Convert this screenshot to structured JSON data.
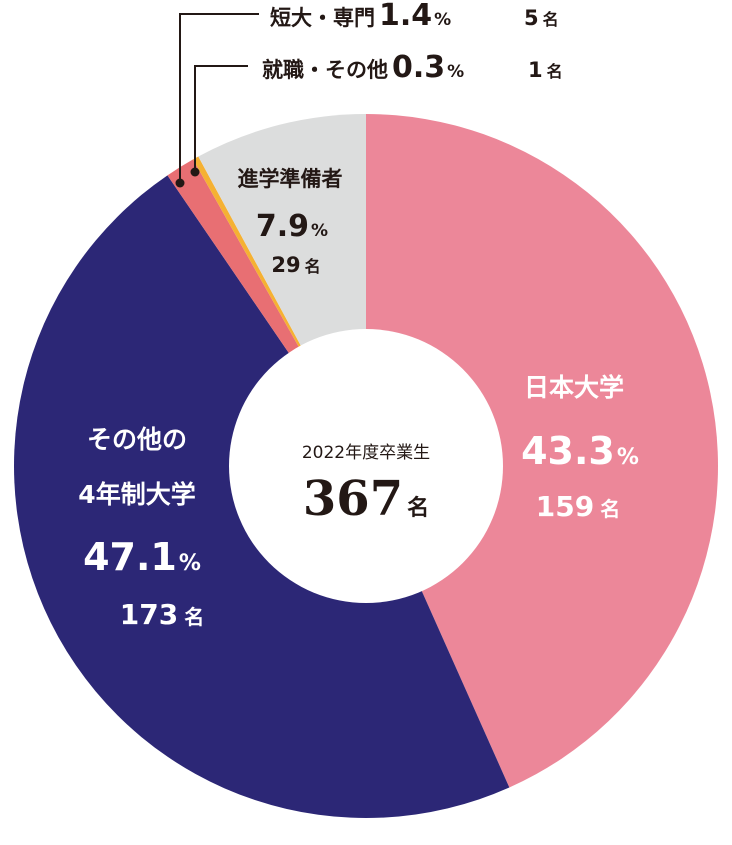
{
  "chart_data": {
    "type": "pie",
    "variant": "donut",
    "title": "2022年度卒業生",
    "total": "367",
    "total_unit": "名",
    "percent_symbol": "%",
    "slices": [
      {
        "label": "日本大学",
        "percent": "43.3",
        "value": 159,
        "count": "159",
        "unit": "名",
        "color": "#ec8799",
        "text_color": "#ffffff"
      },
      {
        "label": "その他の4年制大学",
        "label_lines": [
          "その他の",
          "4年制大学"
        ],
        "percent": "47.1",
        "value": 173,
        "count": "173",
        "unit": "名",
        "color": "#2c2776",
        "text_color": "#ffffff"
      },
      {
        "label": "短大・専門",
        "percent": "1.4",
        "value": 5,
        "count": "5",
        "unit": "名",
        "color": "#e86f73",
        "text_color": "#231815"
      },
      {
        "label": "就職・その他",
        "percent": "0.3",
        "value": 1,
        "count": "1",
        "unit": "名",
        "color": "#f5b133",
        "text_color": "#231815"
      },
      {
        "label": "進学準備者",
        "percent": "7.9",
        "value": 29,
        "count": "29",
        "unit": "名",
        "color": "#dcdddd",
        "text_color": "#231815"
      }
    ],
    "center_color": "#ffffff",
    "leader_line_color": "#231815"
  }
}
